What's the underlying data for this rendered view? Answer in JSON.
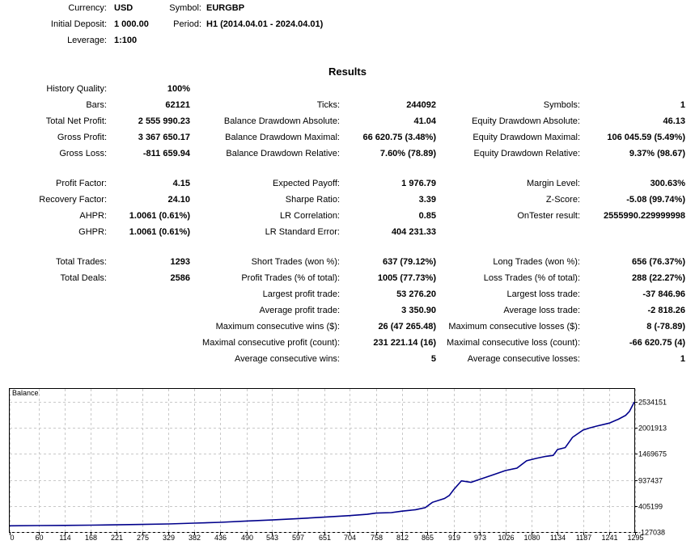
{
  "header": {
    "currency_label": "Currency:",
    "currency_value": "USD",
    "symbol_label": "Symbol:",
    "symbol_value": "EURGBP",
    "deposit_label": "Initial Deposit:",
    "deposit_value": "1 000.00",
    "period_label": "Period:",
    "period_value": "H1 (2014.04.01 - 2024.04.01)",
    "leverage_label": "Leverage:",
    "leverage_value": "1:100"
  },
  "results_title": "Results",
  "col1": [
    {
      "label": "History Quality:",
      "value": "100%"
    },
    {
      "label": "Bars:",
      "value": "62121"
    },
    {
      "label": "Total Net Profit:",
      "value": "2 555 990.23"
    },
    {
      "label": "Gross Profit:",
      "value": "3 367 650.17"
    },
    {
      "label": "Gross Loss:",
      "value": "-811 659.94"
    },
    {
      "label": "Profit Factor:",
      "value": "4.15"
    },
    {
      "label": "Recovery Factor:",
      "value": "24.10"
    },
    {
      "label": "AHPR:",
      "value": "1.0061 (0.61%)"
    },
    {
      "label": "GHPR:",
      "value": "1.0061 (0.61%)"
    },
    {
      "label": "Total Trades:",
      "value": "1293"
    },
    {
      "label": "Total Deals:",
      "value": "2586"
    }
  ],
  "col2": [
    {
      "label": "Ticks:",
      "value": "244092"
    },
    {
      "label": "Balance Drawdown Absolute:",
      "value": "41.04"
    },
    {
      "label": "Balance Drawdown Maximal:",
      "value": "66 620.75 (3.48%)"
    },
    {
      "label": "Balance Drawdown Relative:",
      "value": "7.60% (78.89)"
    },
    {
      "label": "Expected Payoff:",
      "value": "1 976.79"
    },
    {
      "label": "Sharpe Ratio:",
      "value": "3.39"
    },
    {
      "label": "LR Correlation:",
      "value": "0.85"
    },
    {
      "label": "LR Standard Error:",
      "value": "404 231.33"
    },
    {
      "label": "Short Trades (won %):",
      "value": "637 (79.12%)"
    },
    {
      "label": "Profit Trades (% of total):",
      "value": "1005 (77.73%)"
    },
    {
      "label": "Largest profit trade:",
      "value": "53 276.20"
    },
    {
      "label": "Average profit trade:",
      "value": "3 350.90"
    },
    {
      "label": "Maximum consecutive wins ($):",
      "value": "26 (47 265.48)"
    },
    {
      "label": "Maximal consecutive profit (count):",
      "value": "231 221.14 (16)"
    },
    {
      "label": "Average consecutive wins:",
      "value": "5"
    }
  ],
  "col3": [
    {
      "label": "Symbols:",
      "value": "1"
    },
    {
      "label": "Equity Drawdown Absolute:",
      "value": "46.13"
    },
    {
      "label": "Equity Drawdown Maximal:",
      "value": "106 045.59 (5.49%)"
    },
    {
      "label": "Equity Drawdown Relative:",
      "value": "9.37% (98.67)"
    },
    {
      "label": "Margin Level:",
      "value": "300.63%"
    },
    {
      "label": "Z-Score:",
      "value": "-5.08 (99.74%)"
    },
    {
      "label": "OnTester result:",
      "value": "2555990.229999998"
    },
    {
      "label": "Long Trades (won %):",
      "value": "656 (76.37%)"
    },
    {
      "label": "Loss Trades (% of total):",
      "value": "288 (22.27%)"
    },
    {
      "label": "Largest loss trade:",
      "value": "-37 846.96"
    },
    {
      "label": "Average loss trade:",
      "value": "-2 818.26"
    },
    {
      "label": "Maximum consecutive losses ($):",
      "value": "8 (-78.89)"
    },
    {
      "label": "Maximal consecutive loss (count):",
      "value": "-66 620.75 (4)"
    },
    {
      "label": "Average consecutive losses:",
      "value": "1"
    }
  ],
  "chart_data": {
    "type": "line",
    "title": "Balance",
    "series_color": "#00008b",
    "x_ticks": [
      0,
      60,
      114,
      168,
      221,
      275,
      329,
      382,
      436,
      490,
      543,
      597,
      651,
      704,
      758,
      812,
      865,
      919,
      973,
      1026,
      1080,
      1134,
      1187,
      1241,
      1295
    ],
    "y_ticks": [
      2534151,
      2001913,
      1469675,
      937437,
      405199,
      -127038
    ],
    "xlim": [
      0,
      1293
    ],
    "ylim": [
      -127038,
      2800000
    ],
    "series": [
      {
        "values": [
          [
            0,
            1000
          ],
          [
            60,
            5000
          ],
          [
            114,
            9000
          ],
          [
            168,
            14000
          ],
          [
            221,
            20000
          ],
          [
            275,
            28000
          ],
          [
            329,
            38000
          ],
          [
            382,
            55000
          ],
          [
            436,
            72000
          ],
          [
            490,
            98000
          ],
          [
            543,
            120000
          ],
          [
            597,
            148000
          ],
          [
            651,
            178000
          ],
          [
            704,
            208000
          ],
          [
            740,
            235000
          ],
          [
            758,
            260000
          ],
          [
            790,
            270000
          ],
          [
            812,
            300000
          ],
          [
            840,
            330000
          ],
          [
            860,
            370000
          ],
          [
            875,
            480000
          ],
          [
            900,
            560000
          ],
          [
            910,
            620000
          ],
          [
            919,
            740000
          ],
          [
            935,
            920000
          ],
          [
            955,
            890000
          ],
          [
            973,
            950000
          ],
          [
            1000,
            1040000
          ],
          [
            1026,
            1130000
          ],
          [
            1050,
            1180000
          ],
          [
            1070,
            1330000
          ],
          [
            1090,
            1380000
          ],
          [
            1110,
            1420000
          ],
          [
            1125,
            1440000
          ],
          [
            1134,
            1560000
          ],
          [
            1150,
            1600000
          ],
          [
            1165,
            1810000
          ],
          [
            1187,
            1960000
          ],
          [
            1200,
            2000000
          ],
          [
            1215,
            2040000
          ],
          [
            1241,
            2100000
          ],
          [
            1260,
            2180000
          ],
          [
            1275,
            2260000
          ],
          [
            1283,
            2340000
          ],
          [
            1293,
            2534151
          ]
        ]
      }
    ]
  }
}
